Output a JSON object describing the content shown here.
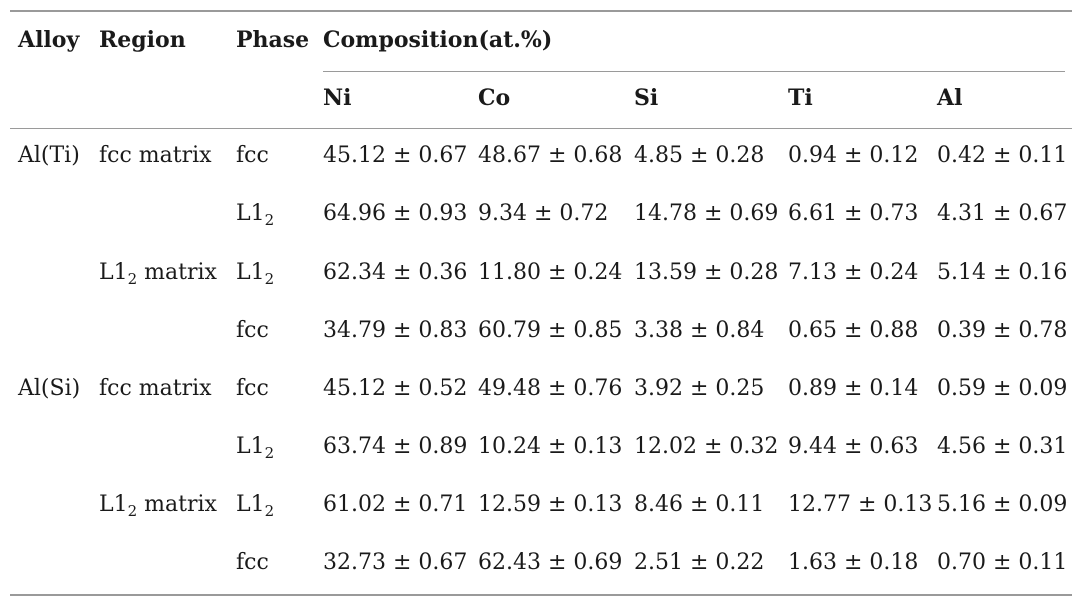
{
  "headers": {
    "alloy": "Alloy",
    "region": "Region",
    "phase": "Phase",
    "composition": "Composition(at.%)",
    "elements": [
      "Ni",
      "Co",
      "Si",
      "Ti",
      "Al"
    ]
  },
  "rows": [
    {
      "alloy": "Al(Ti)",
      "region": "fcc matrix",
      "phase": "fcc",
      "values": [
        "45.12 ± 0.67",
        "48.67 ± 0.68",
        "4.85 ± 0.28",
        "0.94 ± 0.12",
        "0.42 ± 0.11"
      ]
    },
    {
      "alloy": "",
      "region": "",
      "phase": "L1|2",
      "values": [
        "64.96 ± 0.93",
        "9.34 ± 0.72",
        "14.78 ± 0.69",
        "6.61 ± 0.73",
        "4.31 ± 0.67"
      ]
    },
    {
      "alloy": "",
      "region": "L1|2 matrix",
      "phase": "L1|2",
      "values": [
        "62.34 ± 0.36",
        "11.80 ± 0.24",
        "13.59 ± 0.28",
        "7.13 ± 0.24",
        "5.14 ± 0.16"
      ]
    },
    {
      "alloy": "",
      "region": "",
      "phase": "fcc",
      "values": [
        "34.79 ± 0.83",
        "60.79 ± 0.85",
        "3.38 ± 0.84",
        "0.65 ± 0.88",
        "0.39 ± 0.78"
      ]
    },
    {
      "alloy": "Al(Si)",
      "region": "fcc matrix",
      "phase": "fcc",
      "values": [
        "45.12 ± 0.52",
        "49.48 ± 0.76",
        "3.92 ± 0.25",
        "0.89 ± 0.14",
        "0.59 ± 0.09"
      ]
    },
    {
      "alloy": "",
      "region": "",
      "phase": "L1|2",
      "values": [
        "63.74 ± 0.89",
        "10.24 ± 0.13",
        "12.02 ± 0.32",
        "9.44 ± 0.63",
        "4.56 ± 0.31"
      ]
    },
    {
      "alloy": "",
      "region": "L1|2 matrix",
      "phase": "L1|2",
      "values": [
        "61.02 ± 0.71",
        "12.59 ± 0.13",
        "8.46 ± 0.11",
        "12.77 ± 0.13",
        "5.16 ± 0.09"
      ]
    },
    {
      "alloy": "",
      "region": "",
      "phase": "fcc",
      "values": [
        "32.73 ± 0.67",
        "62.43 ± 0.69",
        "2.51 ± 0.22",
        "1.63 ± 0.18",
        "0.70 ± 0.11"
      ]
    }
  ]
}
